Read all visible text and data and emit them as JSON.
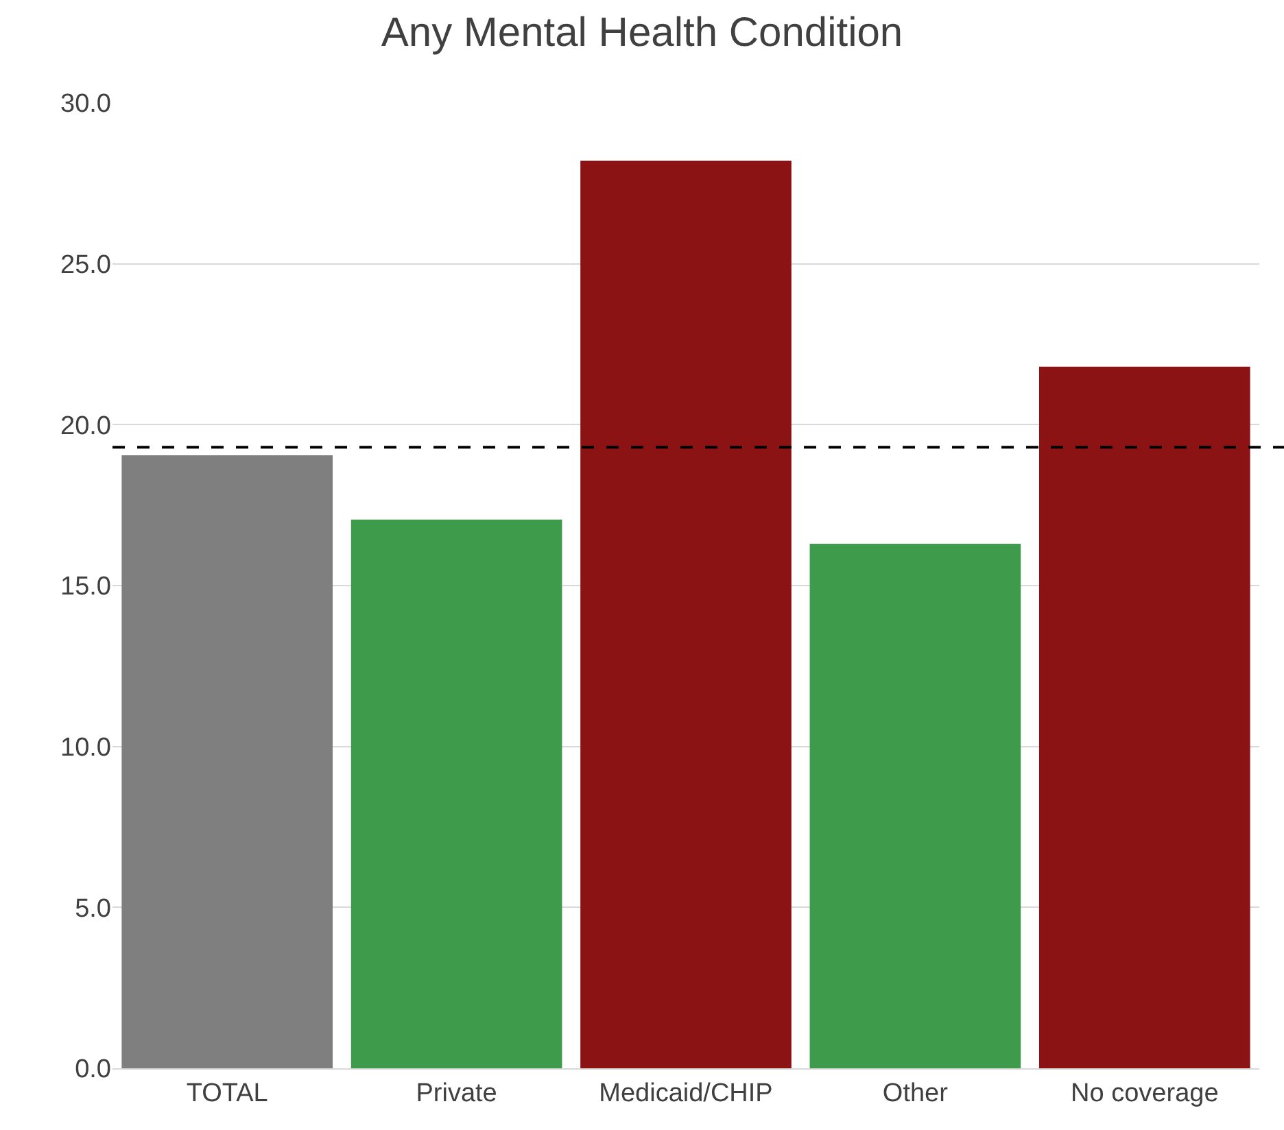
{
  "chart_data": {
    "type": "bar",
    "title": "Any Mental Health Condition",
    "categories": [
      "TOTAL",
      "Private",
      "Medicaid/CHIP",
      "Other",
      "No coverage"
    ],
    "values": [
      19.05,
      17.05,
      28.2,
      16.3,
      21.8
    ],
    "colors": [
      "#7f7f7f",
      "#3f9b4c",
      "#8b1313",
      "#3f9b4c",
      "#8b1313"
    ],
    "ylim": [
      0,
      30
    ],
    "yticks": [
      {
        "value": 0,
        "label": "0.0"
      },
      {
        "value": 5,
        "label": "5.0"
      },
      {
        "value": 10,
        "label": "10.0"
      },
      {
        "value": 15,
        "label": "15.0"
      },
      {
        "value": 20,
        "label": "20.0"
      },
      {
        "value": 25,
        "label": "25.0"
      },
      {
        "value": 30,
        "label": "30.0"
      }
    ],
    "grid": "y",
    "ref_lines": [
      {
        "axis": "y",
        "value": 19.3,
        "label": null,
        "color": "#000000",
        "line_style": "dashed"
      }
    ]
  }
}
